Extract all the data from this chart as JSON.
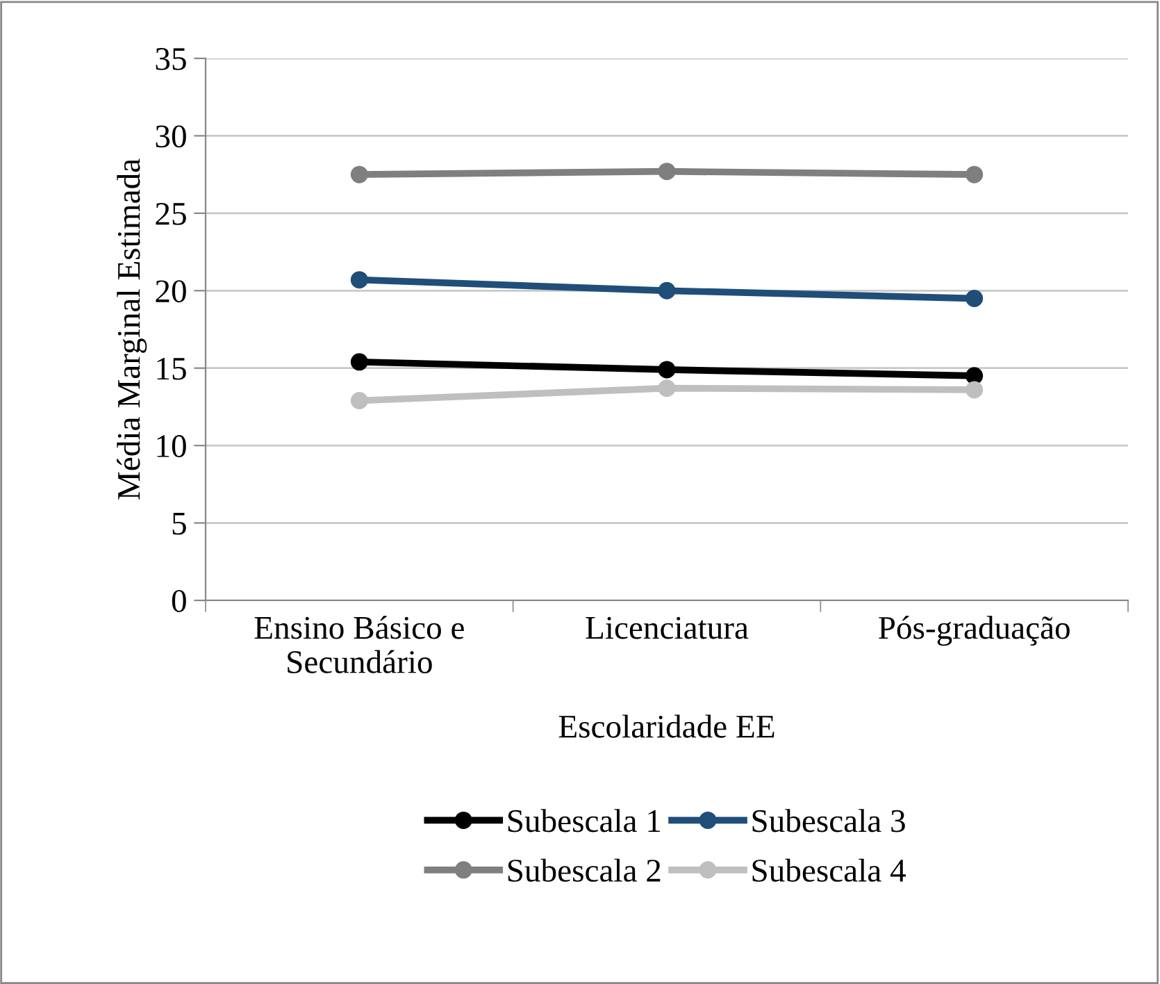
{
  "chart_data": {
    "type": "line",
    "xlabel": "Escolaridade EE",
    "ylabel": "Média Marginal Estimada",
    "categories": [
      "Ensino Básico e Secundário",
      "Licenciatura",
      "Pós-graduação"
    ],
    "series": [
      {
        "name": "Subescala 1",
        "color": "#000000",
        "values": [
          15.4,
          14.9,
          14.5
        ]
      },
      {
        "name": "Subescala 2",
        "color": "#7f7f7f",
        "values": [
          27.5,
          27.7,
          27.5
        ]
      },
      {
        "name": "Subescala 3",
        "color": "#1f4e79",
        "values": [
          20.7,
          20.0,
          19.5
        ]
      },
      {
        "name": "Subescala 4",
        "color": "#bfbfbf",
        "values": [
          12.9,
          13.7,
          13.6
        ]
      }
    ],
    "ylim": [
      0,
      35
    ],
    "yticks": [
      0,
      5,
      10,
      15,
      20,
      25,
      30,
      35
    ],
    "grid": "y",
    "legend": "bottom",
    "marker": "circle",
    "line_style": "solid"
  }
}
